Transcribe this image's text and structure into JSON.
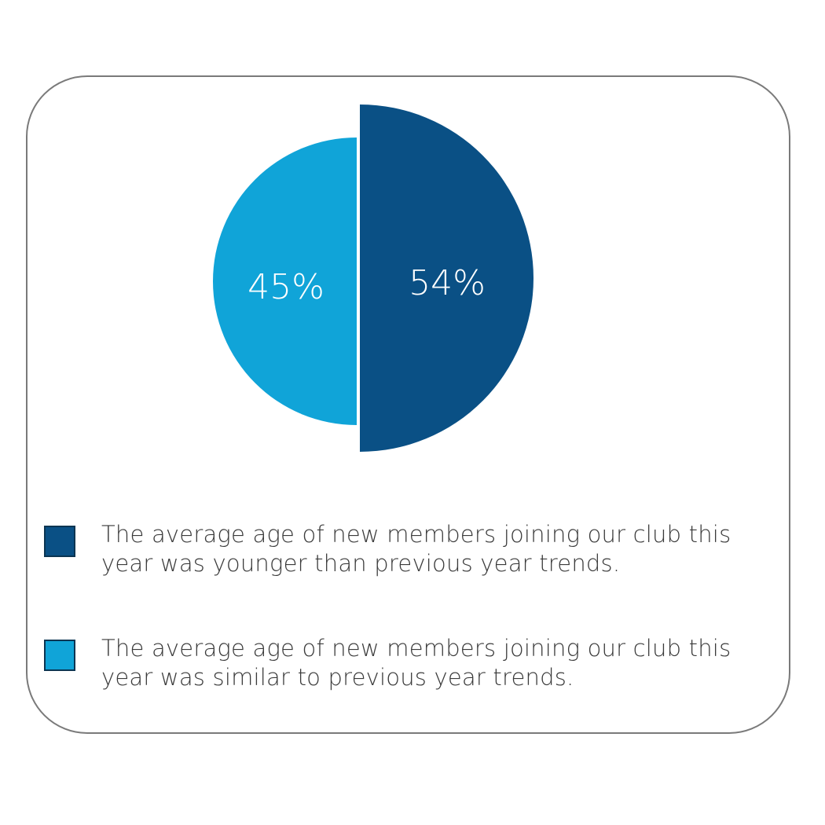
{
  "chart_data": {
    "type": "pie",
    "slices": [
      {
        "label": "The average age of new members joining our club this year was younger than previous year trends.",
        "value": 54,
        "display": "54%",
        "color": "#0a5085"
      },
      {
        "label": "The average age of new members joining our club this year was similar to previous year trends.",
        "value": 45,
        "display": "45%",
        "color": "#10a4d8"
      }
    ],
    "legend_placement": "bottom",
    "title": ""
  }
}
